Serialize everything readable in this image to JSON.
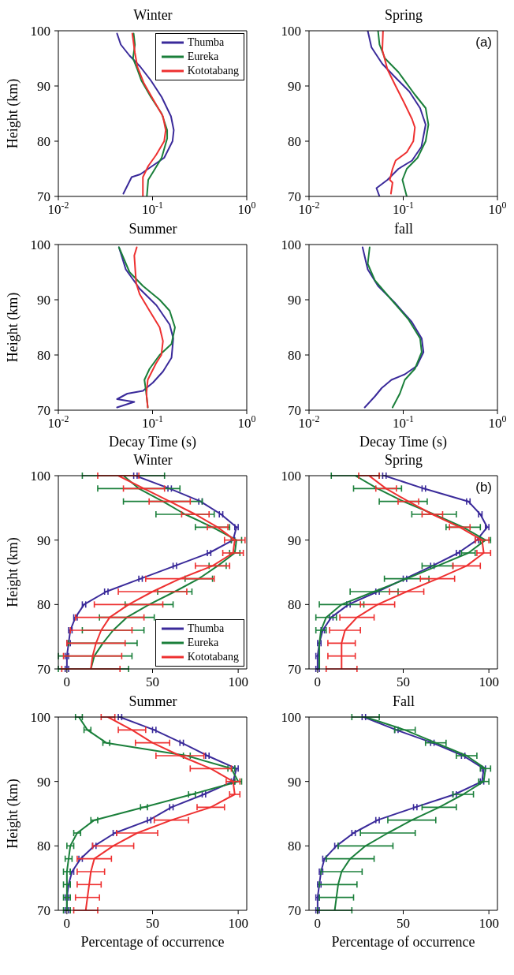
{
  "chart_data": [
    {
      "type": "line",
      "title": "Winter",
      "ylabel": "Height (km)",
      "log": "x",
      "xlim": [
        0.01,
        1
      ],
      "xticks": [
        {
          "value": 0.01,
          "label": "10$^{-2}$"
        },
        {
          "value": 0.1,
          "label": "10$^{-1}$"
        },
        {
          "value": 1,
          "label": "10$^{0}$"
        }
      ],
      "ylim": [
        70,
        100
      ],
      "yticks": [
        70,
        80,
        90,
        100
      ],
      "legend": "top right",
      "marker": "none",
      "series": [
        {
          "name": "Thumba",
          "color": "#3a2a9a",
          "x": [
            0.042,
            0.046,
            0.057,
            0.074,
            0.096,
            0.125,
            0.157,
            0.168,
            0.163,
            0.133,
            0.09,
            0.074,
            0.06,
            0.049
          ],
          "values": [
            99.5,
            97.5,
            95.5,
            93.5,
            91,
            88,
            84.5,
            82,
            80,
            77,
            75,
            74,
            73.5,
            70.5
          ]
        },
        {
          "name": "Eureka",
          "color": "#1a7f3a",
          "x": [
            0.063,
            0.065,
            0.062,
            0.069,
            0.076,
            0.096,
            0.125,
            0.143,
            0.143,
            0.125,
            0.102,
            0.09,
            0.087
          ],
          "values": [
            99.5,
            97.5,
            95,
            93,
            91,
            88,
            85,
            82,
            80.5,
            77,
            74.5,
            73,
            70
          ]
        },
        {
          "name": "Kototabang",
          "color": "#ee3030",
          "x": [
            0.061,
            0.065,
            0.069,
            0.081,
            0.102,
            0.129,
            0.138,
            0.133,
            0.109,
            0.09,
            0.079,
            0.079
          ],
          "values": [
            99.5,
            96,
            93.5,
            90.5,
            87.5,
            84.5,
            82,
            80,
            77.5,
            75.5,
            73.5,
            70
          ]
        }
      ]
    },
    {
      "type": "line",
      "title": "Spring",
      "annotations": [
        "(a)"
      ],
      "log": "x",
      "xlim": [
        0.01,
        1
      ],
      "xticks": [
        {
          "value": 0.01,
          "label": "10$^{-2}$"
        },
        {
          "value": 0.1,
          "label": "10$^{-1}$"
        },
        {
          "value": 1,
          "label": "10$^{0}$"
        }
      ],
      "ylim": [
        70,
        100
      ],
      "yticks": [
        70,
        80,
        90,
        100
      ],
      "marker": "none",
      "series": [
        {
          "color": "#3a2a9a",
          "x": [
            0.042,
            0.046,
            0.06,
            0.083,
            0.116,
            0.151,
            0.173,
            0.156,
            0.124,
            0.089,
            0.068,
            0.052,
            0.056
          ],
          "values": [
            100,
            97,
            94,
            91.5,
            89,
            86,
            83,
            79,
            76.5,
            75,
            73,
            71.5,
            70
          ]
        },
        {
          "color": "#1a7f3a",
          "x": [
            0.054,
            0.056,
            0.064,
            0.089,
            0.132,
            0.173,
            0.185,
            0.173,
            0.142,
            0.109,
            0.098,
            0.109
          ],
          "values": [
            100,
            97.5,
            95,
            92.5,
            88.5,
            86,
            83,
            80,
            77,
            75,
            73,
            70
          ]
        },
        {
          "color": "#ee3030",
          "x": [
            0.061,
            0.06,
            0.068,
            0.083,
            0.102,
            0.124,
            0.133,
            0.128,
            0.109,
            0.083,
            0.077,
            0.072,
            0.077,
            0.074
          ],
          "values": [
            100,
            96.5,
            93,
            90,
            87,
            84,
            82.5,
            80,
            78,
            76.5,
            75,
            73,
            72.5,
            70.5
          ]
        }
      ]
    },
    {
      "type": "line",
      "title": "Summer",
      "ylabel": "Height (km)",
      "xlabel": "Decay Time (s)",
      "log": "x",
      "xlim": [
        0.01,
        1
      ],
      "xticks": [
        {
          "value": 0.01,
          "label": "10$^{-2}$"
        },
        {
          "value": 0.1,
          "label": "10$^{-1}$"
        },
        {
          "value": 1,
          "label": "10$^{0}$"
        }
      ],
      "ylim": [
        70,
        100
      ],
      "yticks": [
        70,
        80,
        90,
        100
      ],
      "marker": "none",
      "series": [
        {
          "color": "#3a2a9a",
          "x": [
            0.044,
            0.052,
            0.073,
            0.11,
            0.152,
            0.166,
            0.159,
            0.129,
            0.101,
            0.079,
            0.054,
            0.042,
            0.064,
            0.042
          ],
          "values": [
            99.5,
            95.5,
            92,
            89,
            85.5,
            83,
            79.5,
            77,
            75,
            73.5,
            73,
            72,
            71.5,
            70.5
          ]
        },
        {
          "color": "#1a7f3a",
          "x": [
            0.044,
            0.057,
            0.079,
            0.119,
            0.152,
            0.173,
            0.159,
            0.119,
            0.093,
            0.082,
            0.086,
            0.089
          ],
          "values": [
            99.5,
            95,
            92.5,
            90,
            88,
            85,
            82,
            80,
            77.5,
            75.5,
            73,
            70.5
          ]
        },
        {
          "color": "#ee3030",
          "x": [
            0.068,
            0.064,
            0.067,
            0.073,
            0.093,
            0.119,
            0.129,
            0.124,
            0.109,
            0.089,
            0.086,
            0.089
          ],
          "values": [
            99.5,
            98,
            93,
            91,
            88,
            85,
            82.5,
            80,
            78.5,
            75.5,
            73,
            70.5
          ]
        }
      ]
    },
    {
      "type": "line",
      "title": "fall",
      "xlabel": "Decay Time (s)",
      "log": "x",
      "xlim": [
        0.01,
        1
      ],
      "xticks": [
        {
          "value": 0.01,
          "label": "10$^{-2}$"
        },
        {
          "value": 0.1,
          "label": "10$^{-1}$"
        },
        {
          "value": 1,
          "label": "10$^{0}$"
        }
      ],
      "ylim": [
        70,
        100
      ],
      "yticks": [
        70,
        80,
        90,
        100
      ],
      "marker": "none",
      "series": [
        {
          "color": "#3a2a9a",
          "x": [
            0.037,
            0.042,
            0.054,
            0.081,
            0.123,
            0.157,
            0.164,
            0.139,
            0.104,
            0.075,
            0.059,
            0.05,
            0.039
          ],
          "values": [
            99.5,
            95.5,
            92.5,
            89.5,
            86,
            83,
            80.5,
            78,
            76.5,
            75.5,
            74,
            72.5,
            70.5
          ]
        },
        {
          "color": "#1a7f3a",
          "x": [
            0.044,
            0.042,
            0.05,
            0.075,
            0.113,
            0.151,
            0.157,
            0.133,
            0.104,
            0.092,
            0.077
          ],
          "values": [
            99.5,
            96.5,
            93.5,
            90,
            86.5,
            83,
            80.5,
            77.5,
            75.5,
            73,
            70.5
          ]
        }
      ]
    },
    {
      "type": "line",
      "title": "Winter",
      "ylabel": "Height (km)",
      "xlim": [
        -5,
        105
      ],
      "xticks": [
        0,
        50,
        100
      ],
      "ylim": [
        70,
        100
      ],
      "yticks": [
        70,
        80,
        90,
        100
      ],
      "legend": "bottom right",
      "marker": "none",
      "series": [
        {
          "name": "Thumba",
          "color": "#3a2a9a",
          "x": [
            40,
            60,
            78,
            90,
            99,
            97,
            83,
            63,
            43,
            23,
            10,
            5,
            2,
            1,
            0,
            0
          ],
          "values": [
            100,
            98,
            96,
            94,
            92,
            90,
            88,
            86,
            84,
            82,
            80,
            78,
            76,
            74,
            72,
            70
          ],
          "xerrors": [
            1,
            1,
            1,
            1,
            1,
            1,
            1,
            1,
            1,
            1,
            1,
            1,
            1,
            1,
            1,
            1
          ]
        },
        {
          "name": "Eureka",
          "color": "#1a7f3a",
          "x": [
            33,
            42,
            56,
            69,
            85,
            99,
            98,
            88,
            77,
            63,
            48,
            35,
            27,
            21,
            16,
            14
          ],
          "values": [
            100,
            98,
            96,
            94,
            92,
            90,
            88,
            86,
            84,
            82,
            80,
            78,
            76,
            74,
            72,
            70
          ],
          "xerrors": [
            24,
            24,
            23,
            17,
            10,
            3,
            3,
            5,
            8,
            10,
            14,
            16,
            18,
            20,
            [
              -5,
              38
            ],
            [
              -5,
              36
            ]
          ]
        },
        {
          "name": "Kototabang",
          "color": "#ee3030",
          "x": [
            30,
            45,
            60,
            75,
            88,
            98,
            97,
            85,
            66,
            50,
            36,
            25,
            20,
            17,
            15,
            14
          ],
          "values": [
            100,
            98,
            96,
            94,
            92,
            90,
            88,
            86,
            84,
            82,
            80,
            78,
            76,
            74,
            72,
            70
          ],
          "xerrors": [
            12,
            12,
            12,
            8,
            6,
            6,
            6,
            10,
            20,
            20,
            20,
            20,
            18,
            17,
            17,
            17
          ]
        }
      ]
    },
    {
      "type": "line",
      "title": "Spring",
      "annotations": [
        "(b)"
      ],
      "xlim": [
        -5,
        105
      ],
      "xticks": [
        0,
        50,
        100
      ],
      "ylim": [
        70,
        100
      ],
      "yticks": [
        70,
        80,
        90,
        100
      ],
      "marker": "none",
      "series": [
        {
          "color": "#3a2a9a",
          "x": [
            39,
            62,
            88,
            95,
            99,
            93,
            82,
            67,
            51,
            35,
            18,
            8,
            3,
            1,
            0,
            0
          ],
          "values": [
            100,
            98,
            96,
            94,
            92,
            90,
            88,
            86,
            84,
            82,
            80,
            78,
            76,
            74,
            72,
            70
          ],
          "xerrors": [
            1,
            1,
            1,
            1,
            1,
            1,
            1,
            1,
            1,
            1,
            1,
            1,
            1,
            1,
            1,
            1
          ]
        },
        {
          "color": "#1a7f3a",
          "x": [
            22,
            35,
            50,
            68,
            85,
            98,
            88,
            70,
            52,
            33,
            14,
            5,
            2,
            1,
            1,
            1
          ],
          "values": [
            100,
            98,
            96,
            94,
            92,
            90,
            88,
            86,
            84,
            82,
            80,
            78,
            76,
            74,
            72,
            70
          ],
          "xerrors": [
            14,
            14,
            14,
            13,
            10,
            3,
            4,
            9,
            13,
            14,
            13,
            6,
            3,
            null,
            null,
            null
          ]
        },
        {
          "color": "#ee3030",
          "x": [
            30,
            40,
            53,
            67,
            83,
            96,
            97,
            87,
            70,
            52,
            35,
            23,
            16,
            14,
            14,
            14
          ],
          "values": [
            100,
            98,
            96,
            94,
            92,
            90,
            88,
            86,
            84,
            82,
            80,
            78,
            76,
            74,
            72,
            70
          ],
          "xerrors": [
            6,
            6,
            6,
            6,
            6,
            4,
            4,
            8,
            10,
            10,
            10,
            10,
            9,
            8,
            8,
            9
          ]
        }
      ]
    },
    {
      "type": "line",
      "title": "Summer",
      "ylabel": "Height (km)",
      "xlabel": "Percentage of occurrence",
      "xlim": [
        -5,
        105
      ],
      "xticks": [
        0,
        50,
        100
      ],
      "ylim": [
        70,
        100
      ],
      "yticks": [
        70,
        80,
        90,
        100
      ],
      "marker": "none",
      "series": [
        {
          "color": "#3a2a9a",
          "x": [
            31,
            51,
            67,
            82,
            99,
            97,
            80,
            61,
            48,
            28,
            16,
            8,
            3,
            1,
            0,
            0
          ],
          "values": [
            100,
            98,
            96,
            94,
            92,
            90,
            88,
            86,
            84,
            82,
            80,
            78,
            76,
            74,
            72,
            70
          ],
          "xerrors": [
            1,
            1,
            1,
            1,
            1,
            1,
            1,
            1,
            1,
            1,
            1,
            1,
            1,
            1,
            1,
            1
          ]
        },
        {
          "color": "#1a7f3a",
          "x": [
            7,
            12,
            23,
            70,
            96,
            100,
            73,
            45,
            16,
            6,
            2,
            1,
            0,
            0,
            0,
            0
          ],
          "values": [
            100,
            98,
            96,
            94,
            92,
            90,
            88,
            86,
            84,
            82,
            80,
            78,
            76,
            74,
            72,
            70
          ],
          "xerrors": [
            2,
            2,
            2,
            2,
            2,
            2,
            2,
            2,
            2,
            2,
            2,
            2,
            2,
            2,
            2,
            2
          ]
        },
        {
          "color": "#ee3030",
          "x": [
            24,
            38,
            50,
            66,
            84,
            97,
            98,
            84,
            61,
            41,
            27,
            16,
            14,
            13,
            12,
            11
          ],
          "values": [
            100,
            98,
            96,
            94,
            92,
            90,
            88,
            86,
            84,
            82,
            80,
            78,
            76,
            74,
            72,
            70
          ],
          "xerrors": [
            4,
            8,
            10,
            14,
            12,
            4,
            3,
            8,
            10,
            12,
            12,
            10,
            8,
            7,
            7,
            7
          ]
        }
      ]
    },
    {
      "type": "line",
      "title": "Fall",
      "xlabel": "Percentage of occurrence",
      "xlim": [
        -5,
        105
      ],
      "xticks": [
        0,
        50,
        100
      ],
      "ylim": [
        70,
        100
      ],
      "yticks": [
        70,
        80,
        90,
        100
      ],
      "marker": "none",
      "series": [
        {
          "color": "#3a2a9a",
          "x": [
            27,
            46,
            67,
            85,
            97,
            96,
            80,
            57,
            35,
            21,
            11,
            4,
            2,
            1,
            0,
            0
          ],
          "values": [
            100,
            98,
            96,
            94,
            92,
            90,
            88,
            86,
            84,
            82,
            80,
            78,
            76,
            74,
            72,
            70
          ],
          "xerrors": [
            1,
            1,
            1,
            1,
            1,
            1,
            1,
            1,
            1,
            1,
            1,
            1,
            1,
            1,
            1,
            1
          ]
        },
        {
          "color": "#1a7f3a",
          "x": [
            28,
            51,
            69,
            87,
            98,
            97,
            85,
            71,
            55,
            41,
            28,
            19,
            14,
            12,
            11,
            10
          ],
          "values": [
            100,
            98,
            96,
            94,
            92,
            90,
            88,
            86,
            84,
            82,
            80,
            78,
            76,
            74,
            72,
            70
          ],
          "xerrors": [
            8,
            6,
            6,
            6,
            3,
            3,
            6,
            10,
            14,
            16,
            16,
            14,
            12,
            11,
            10,
            10
          ]
        }
      ]
    }
  ]
}
